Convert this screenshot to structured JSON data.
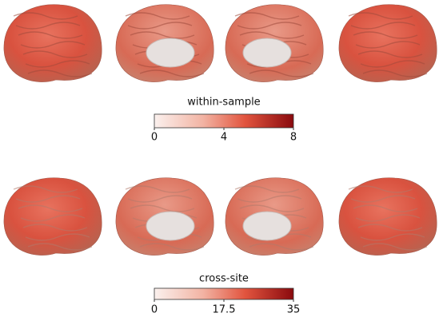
{
  "panels": [
    {
      "label": "within-sample",
      "lim": [
        0,
        8
      ],
      "ticks": [
        0,
        4,
        8
      ]
    },
    {
      "label": "cross-site",
      "lim": [
        0,
        35
      ],
      "ticks": [
        0,
        17.5,
        35
      ]
    }
  ]
}
